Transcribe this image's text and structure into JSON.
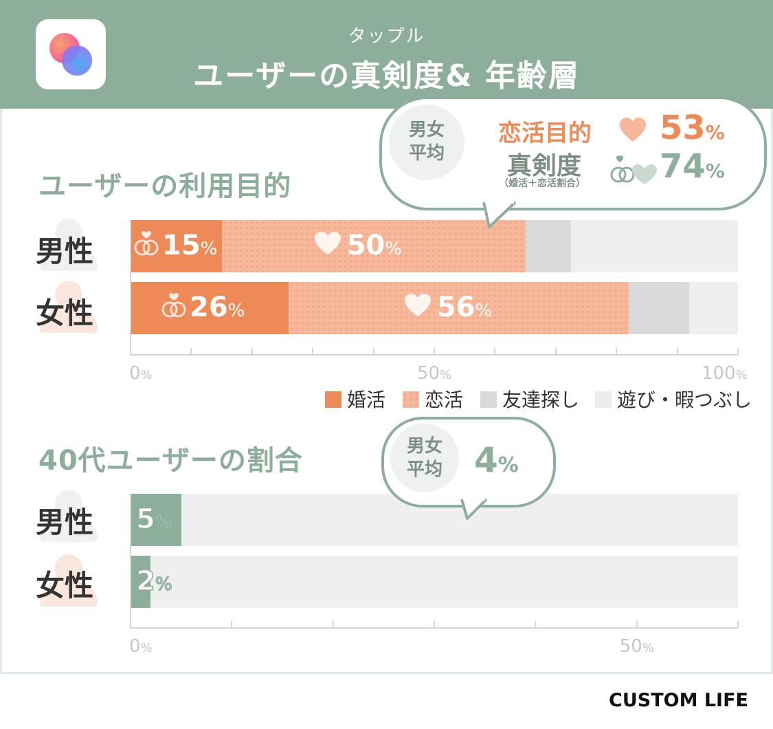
{
  "header": {
    "subtitle": "タップル",
    "title": "ユーザーの真剣度& 年齢層"
  },
  "colors": {
    "green": "#8eae9c",
    "konkatsu": "#ee8a57",
    "renkatsu": "#f6b79a",
    "tomodachi": "#dadada",
    "asobi": "#efefef"
  },
  "rows": {
    "male": "男性",
    "female": "女性"
  },
  "bubble1": {
    "avg_label_1": "男女",
    "avg_label_2": "平均",
    "line1_label": "恋活目的",
    "line1_value": "53",
    "line2_label": "真剣度",
    "line2_sub": "（婚活＋恋活割合）",
    "line2_value": "74",
    "pct": "%"
  },
  "bubble2": {
    "avg_label_1": "男女",
    "avg_label_2": "平均",
    "value": "4",
    "pct": "%"
  },
  "legend": {
    "konkatsu": "婚活",
    "renkatsu": "恋活",
    "tomodachi": "友達探し",
    "asobi": "遊び・暇つぶし"
  },
  "chart_data": [
    {
      "type": "bar",
      "title": "ユーザーの利用目的",
      "stacked": true,
      "categories": [
        "男性",
        "女性"
      ],
      "series": [
        {
          "name": "婚活",
          "values": [
            15,
            26
          ],
          "labels": [
            "15",
            "26"
          ]
        },
        {
          "name": "恋活",
          "values": [
            50,
            56
          ],
          "labels": [
            "50",
            "56"
          ]
        },
        {
          "name": "友達探し",
          "values": [
            7.5,
            10
          ]
        },
        {
          "name": "遊び・暇つぶし",
          "values": [
            27.5,
            8
          ]
        }
      ],
      "xlim": [
        0,
        100
      ],
      "tick_labels": [
        "0",
        "50",
        "100"
      ],
      "pct": "%"
    },
    {
      "type": "bar",
      "title": "40代ユーザーの割合",
      "categories": [
        "男性",
        "女性"
      ],
      "values": [
        5,
        2
      ],
      "labels": [
        "5",
        "2"
      ],
      "xlim": [
        0,
        60
      ],
      "tick_labels": [
        "0",
        "50"
      ],
      "pct": "%"
    }
  ],
  "brand": "CUSTOM LIFE"
}
